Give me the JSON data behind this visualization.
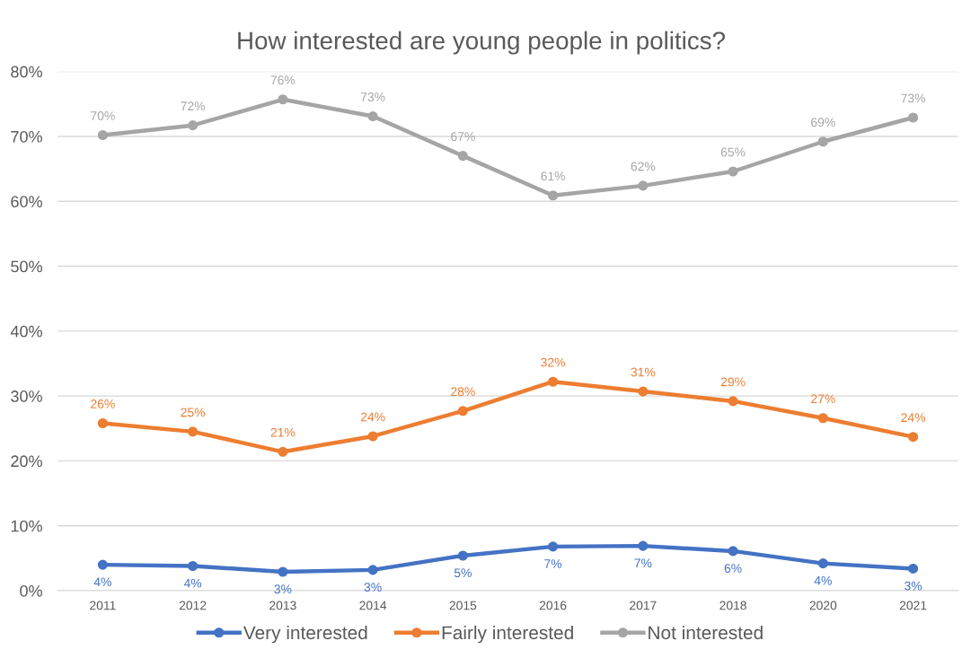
{
  "chart_data": {
    "type": "line",
    "title": "How interested are young people in politics?",
    "categories": [
      "2011",
      "2012",
      "2013",
      "2014",
      "2015",
      "2016",
      "2017",
      "2018",
      "2020",
      "2021"
    ],
    "series": [
      {
        "name": "Very interested",
        "color": "#4472c4",
        "values": [
          4.0,
          3.8,
          2.9,
          3.2,
          5.4,
          6.8,
          6.9,
          6.1,
          4.2,
          3.4
        ],
        "value_labels": [
          "4%",
          "4%",
          "3%",
          "3%",
          "5%",
          "7%",
          "7%",
          "6%",
          "4%",
          "3%"
        ]
      },
      {
        "name": "Fairly interested",
        "color": "#ed7d31",
        "values": [
          25.8,
          24.5,
          21.4,
          23.8,
          27.7,
          32.2,
          30.7,
          29.2,
          26.6,
          23.7
        ],
        "value_labels": [
          "26%",
          "25%",
          "21%",
          "24%",
          "28%",
          "32%",
          "31%",
          "29%",
          "27%",
          "24%"
        ]
      },
      {
        "name": "Not interested",
        "color": "#a5a5a5",
        "values": [
          70.2,
          71.7,
          75.7,
          73.1,
          67.0,
          60.9,
          62.4,
          64.6,
          69.2,
          72.9
        ],
        "value_labels": [
          "70%",
          "72%",
          "76%",
          "73%",
          "67%",
          "61%",
          "62%",
          "65%",
          "69%",
          "73%"
        ]
      }
    ],
    "ylim": [
      0,
      80
    ],
    "yticks": [
      {
        "value": 0,
        "label": "0%"
      },
      {
        "value": 10,
        "label": "10%"
      },
      {
        "value": 20,
        "label": "20%"
      },
      {
        "value": 30,
        "label": "30%"
      },
      {
        "value": 40,
        "label": "40%"
      },
      {
        "value": 50,
        "label": "50%"
      },
      {
        "value": 60,
        "label": "60%"
      },
      {
        "value": 70,
        "label": "70%"
      },
      {
        "value": 80,
        "label": "80%"
      }
    ],
    "grid": "y",
    "legend": "bottom",
    "marker": "circle",
    "line_style": "solid"
  }
}
